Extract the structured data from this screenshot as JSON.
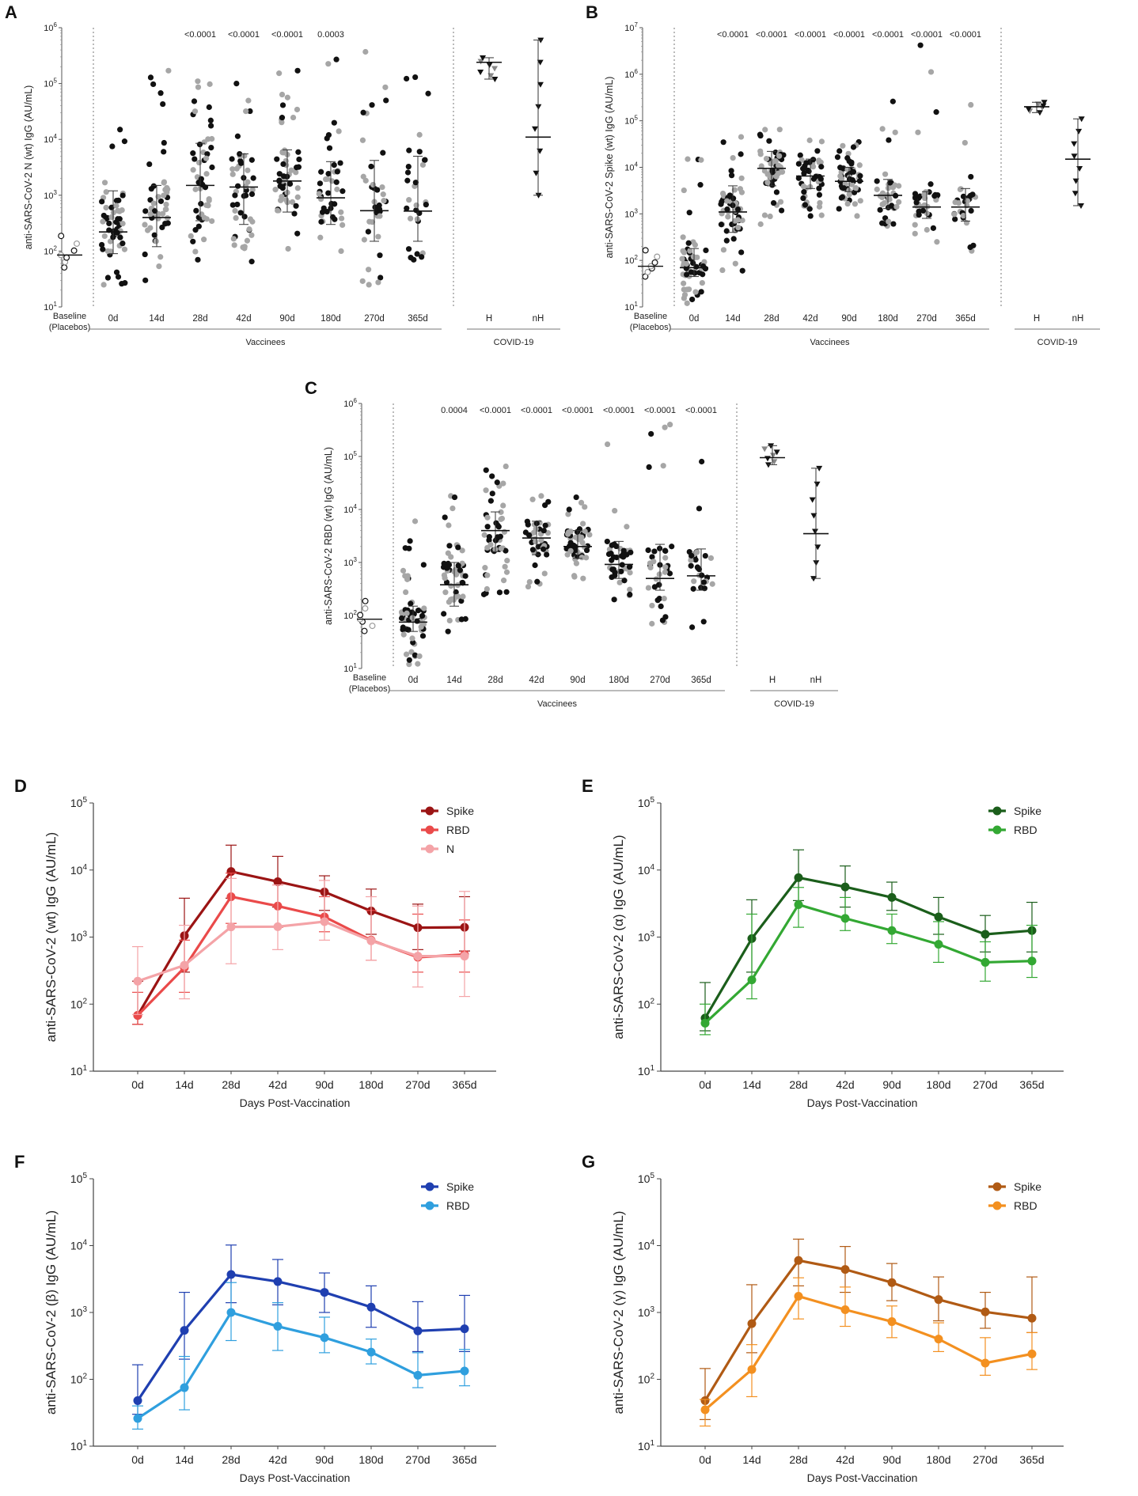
{
  "figure": {
    "days_labels": [
      "0d",
      "14d",
      "28d",
      "42d",
      "90d",
      "180d",
      "270d",
      "365d"
    ],
    "baseline_label_1": "Baseline",
    "baseline_label_2": "(Placebos)",
    "vaccinees_label": "Vaccinees",
    "covid_label": "COVID-19",
    "covid_groups": [
      "H",
      "nH"
    ],
    "days_xlabel": "Days Post-Vaccination"
  },
  "chart_data": [
    {
      "panel": "A",
      "type": "scatter",
      "ylabel": "anti-SARS-CoV-2 N (wt)  IgG (AU/mL)",
      "ylim_log10": [
        1,
        6
      ],
      "p_values": [
        "",
        "",
        "<0.0001",
        "<0.0001",
        "<0.0001",
        "0.0003",
        "",
        ""
      ],
      "baseline_median": 85,
      "vaccinee_medians": [
        220,
        400,
        1500,
        1400,
        1800,
        900,
        530,
        520
      ],
      "vaccinee_q1": [
        90,
        120,
        350,
        300,
        500,
        300,
        150,
        150
      ],
      "vaccinee_q3": [
        1200,
        1500,
        8500,
        5500,
        6500,
        4000,
        4200,
        5000
      ],
      "vaccinee_min": [
        25,
        30,
        70,
        65,
        110,
        100,
        25,
        70
      ],
      "vaccinee_max": [
        15000,
        170000,
        110000,
        100000,
        170000,
        270000,
        370000,
        130000
      ],
      "vaccinee_n": [
        56,
        50,
        52,
        48,
        55,
        42,
        38,
        30
      ],
      "covid_medians": [
        240000,
        11000
      ],
      "covid_ranges": [
        [
          120000,
          290000
        ],
        [
          1000,
          600000
        ]
      ]
    },
    {
      "panel": "B",
      "type": "scatter",
      "ylabel": "anti-SARS-CoV-2 Spike (wt)  IgG (AU/mL)",
      "ylim_log10": [
        1,
        7
      ],
      "p_values": [
        "",
        "<0.0001",
        "<0.0001",
        "<0.0001",
        "<0.0001",
        "<0.0001",
        "<0.0001",
        "<0.0001"
      ],
      "baseline_median": 75,
      "vaccinee_medians": [
        70,
        1100,
        9500,
        6500,
        5000,
        2500,
        1400,
        1400
      ],
      "vaccinee_q1": [
        45,
        400,
        4000,
        3500,
        3000,
        1300,
        800,
        700
      ],
      "vaccinee_q3": [
        180,
        4000,
        22000,
        15000,
        10000,
        5500,
        3000,
        3500
      ],
      "vaccinee_min": [
        12,
        60,
        600,
        900,
        900,
        550,
        250,
        160
      ],
      "vaccinee_max": [
        15000,
        45000,
        65000,
        38000,
        35000,
        260000,
        4200000,
        220000
      ],
      "vaccinee_n": [
        60,
        55,
        52,
        48,
        58,
        42,
        38,
        30
      ],
      "covid_medians": [
        200000,
        15000
      ],
      "covid_ranges": [
        [
          150000,
          250000
        ],
        [
          1500,
          110000
        ]
      ]
    },
    {
      "panel": "C",
      "type": "scatter",
      "ylabel": "anti-SARS-CoV-2 RBD (wt)  IgG (AU/mL)",
      "ylim_log10": [
        1,
        6
      ],
      "p_values": [
        "",
        "0.0004",
        "<0.0001",
        "<0.0001",
        "<0.0001",
        "<0.0001",
        "<0.0001",
        "<0.0001"
      ],
      "baseline_median": 85,
      "vaccinee_medians": [
        75,
        380,
        4000,
        2900,
        2000,
        920,
        500,
        560
      ],
      "vaccinee_q1": [
        50,
        150,
        1600,
        1400,
        1200,
        500,
        300,
        300
      ],
      "vaccinee_q3": [
        150,
        1000,
        9000,
        6000,
        4000,
        2500,
        2200,
        1800
      ],
      "vaccinee_min": [
        12,
        50,
        250,
        350,
        500,
        200,
        70,
        60
      ],
      "vaccinee_max": [
        6000,
        18000,
        65000,
        18000,
        17000,
        170000,
        400000,
        80000
      ],
      "vaccinee_n": [
        60,
        55,
        52,
        48,
        58,
        42,
        38,
        30
      ],
      "covid_medians": [
        95000,
        3500
      ],
      "covid_ranges": [
        [
          70000,
          160000
        ],
        [
          500,
          60000
        ]
      ]
    },
    {
      "panel": "D",
      "type": "line",
      "ylabel": "anti-SARS-CoV-2 (wt)  IgG (AU/mL)",
      "xlabel": "Days Post-Vaccination",
      "categories": [
        "0d",
        "14d",
        "28d",
        "42d",
        "90d",
        "180d",
        "270d",
        "365d"
      ],
      "ylim_log10": [
        1,
        5
      ],
      "series": [
        {
          "name": "Spike",
          "color": "#9b1414",
          "values": [
            68,
            1050,
            9500,
            6700,
            4700,
            2450,
            1380,
            1400
          ],
          "low": [
            50,
            300,
            3800,
            2800,
            2500,
            1100,
            650,
            620
          ],
          "high": [
            220,
            3800,
            23500,
            16000,
            8200,
            5200,
            3100,
            4000
          ]
        },
        {
          "name": "RBD",
          "color": "#ea4a4a",
          "values": [
            68,
            350,
            4000,
            2900,
            2000,
            900,
            500,
            550
          ],
          "low": [
            50,
            150,
            1600,
            1400,
            1200,
            450,
            300,
            300
          ],
          "high": [
            150,
            900,
            9000,
            6000,
            4000,
            2500,
            2200,
            1800
          ]
        },
        {
          "name": "N",
          "color": "#f4a3a7",
          "values": [
            220,
            380,
            1420,
            1430,
            1700,
            880,
            520,
            520
          ],
          "low": [
            70,
            120,
            400,
            650,
            900,
            450,
            180,
            130
          ],
          "high": [
            720,
            1500,
            7500,
            6000,
            7000,
            4000,
            2900,
            4800
          ]
        }
      ]
    },
    {
      "panel": "E",
      "type": "line",
      "ylabel": "anti-SARS-CoV-2 (α)  IgG (AU/mL)",
      "xlabel": "Days Post-Vaccination",
      "categories": [
        "0d",
        "14d",
        "28d",
        "42d",
        "90d",
        "180d",
        "270d",
        "365d"
      ],
      "ylim_log10": [
        1,
        5
      ],
      "series": [
        {
          "name": "Spike",
          "color": "#1b5e1b",
          "values": [
            62,
            950,
            7700,
            5600,
            3900,
            2000,
            1100,
            1250
          ],
          "low": [
            40,
            300,
            3500,
            2800,
            2500,
            1100,
            600,
            600
          ],
          "high": [
            210,
            3600,
            20000,
            11500,
            6600,
            3900,
            2100,
            3300
          ]
        },
        {
          "name": "RBD",
          "color": "#33a833",
          "values": [
            52,
            230,
            3050,
            1900,
            1250,
            780,
            420,
            440
          ],
          "low": [
            35,
            120,
            1400,
            1250,
            800,
            420,
            220,
            250
          ],
          "high": [
            100,
            2200,
            5500,
            3900,
            2200,
            1700,
            850,
            1500
          ]
        }
      ]
    },
    {
      "panel": "F",
      "type": "line",
      "ylabel": "anti-SARS-CoV-2 (β)  IgG (AU/mL)",
      "xlabel": "Days Post-Vaccination",
      "categories": [
        "0d",
        "14d",
        "28d",
        "42d",
        "90d",
        "180d",
        "270d",
        "365d"
      ],
      "ylim_log10": [
        1,
        5
      ],
      "series": [
        {
          "name": "Spike",
          "color": "#1f3fb0",
          "values": [
            48,
            540,
            3700,
            2900,
            2000,
            1200,
            530,
            570
          ],
          "low": [
            30,
            200,
            1400,
            1300,
            1000,
            600,
            260,
            260
          ],
          "high": [
            165,
            2000,
            10200,
            6200,
            3900,
            2500,
            1450,
            1800
          ]
        },
        {
          "name": "RBD",
          "color": "#2f9fde",
          "values": [
            26,
            75,
            1000,
            620,
            420,
            255,
            115,
            133
          ],
          "low": [
            18,
            35,
            380,
            270,
            250,
            170,
            75,
            80
          ],
          "high": [
            40,
            220,
            2800,
            1400,
            850,
            400,
            250,
            280
          ]
        }
      ]
    },
    {
      "panel": "G",
      "type": "line",
      "ylabel": "anti-SARS-CoV-2 (γ)  IgG (AU/mL)",
      "xlabel": "Days Post-Vaccination",
      "categories": [
        "0d",
        "14d",
        "28d",
        "42d",
        "90d",
        "180d",
        "270d",
        "365d"
      ],
      "ylim_log10": [
        1,
        5
      ],
      "series": [
        {
          "name": "Spike",
          "color": "#b05a14",
          "values": [
            48,
            680,
            6000,
            4400,
            2800,
            1560,
            1020,
            820
          ],
          "low": [
            25,
            250,
            2500,
            2000,
            1500,
            750,
            580,
            500
          ],
          "high": [
            145,
            2600,
            12500,
            9700,
            5400,
            3400,
            2000,
            3400
          ]
        },
        {
          "name": "RBD",
          "color": "#f39020",
          "values": [
            35,
            140,
            1750,
            1100,
            730,
            400,
            175,
            240
          ],
          "low": [
            20,
            55,
            800,
            620,
            420,
            260,
            115,
            140
          ],
          "high": [
            50,
            330,
            3300,
            2400,
            1250,
            700,
            420,
            500
          ]
        }
      ]
    }
  ]
}
